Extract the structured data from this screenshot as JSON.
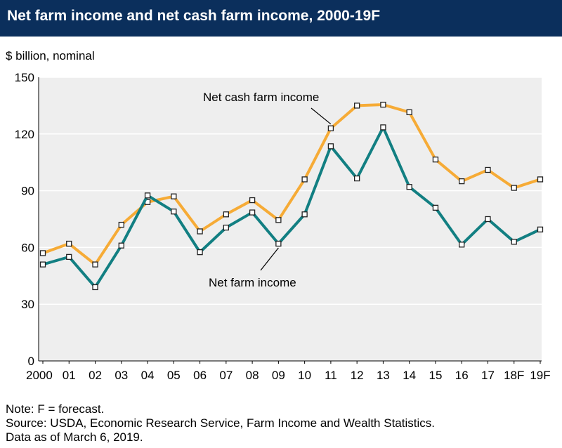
{
  "header": {
    "title": "Net farm income and net cash farm income, 2000-19F"
  },
  "unit_label": "$ billion, nominal",
  "footnotes": {
    "note": "Note: F = forecast.",
    "source": "Source: USDA, Economic Research Service, Farm Income and Wealth Statistics.",
    "data_date": "Data as of March 6, 2019."
  },
  "colors": {
    "net_cash_farm_income": "#f6ab36",
    "net_farm_income": "#127f82",
    "plot_background": "#eeeeee",
    "title_bar": "#0b2f5c"
  },
  "chart_data": {
    "type": "line",
    "title": "Net farm income and net cash farm income, 2000-19F",
    "xlabel": "",
    "ylabel": "$ billion, nominal",
    "ylim": [
      0,
      150
    ],
    "yticks": [
      0,
      30,
      60,
      90,
      120,
      150
    ],
    "grid": true,
    "categories": [
      "2000",
      "01",
      "02",
      "03",
      "04",
      "05",
      "06",
      "07",
      "08",
      "09",
      "10",
      "11",
      "12",
      "13",
      "14",
      "15",
      "16",
      "17",
      "18F",
      "19F"
    ],
    "series": [
      {
        "name": "Net cash farm income",
        "key": "net_cash_farm_income",
        "values": [
          57,
          62,
          51,
          72,
          84,
          87,
          68.5,
          77.5,
          85,
          74.5,
          96,
          123,
          135,
          135.5,
          131.5,
          106.5,
          95,
          101,
          91.5,
          96
        ]
      },
      {
        "name": "Net farm income",
        "key": "net_farm_income",
        "values": [
          51,
          55,
          39,
          61,
          87.5,
          79,
          57.5,
          70.5,
          78.5,
          62,
          77.5,
          113.5,
          96.5,
          123.5,
          92,
          81,
          61.5,
          75,
          63,
          69.5
        ]
      }
    ],
    "annotations": [
      {
        "series": "net_cash_farm_income",
        "text": "Net cash farm income",
        "category": "11"
      },
      {
        "series": "net_farm_income",
        "text": "Net farm income",
        "category": "09"
      }
    ]
  }
}
